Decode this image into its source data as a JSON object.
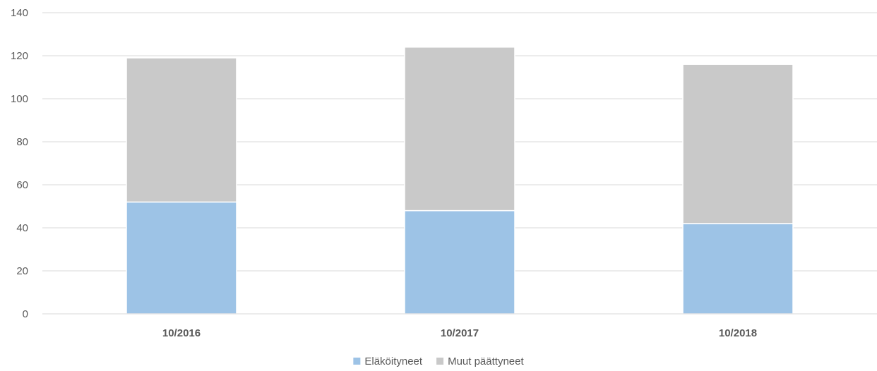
{
  "chart_data": {
    "type": "bar",
    "stacked": true,
    "categories": [
      "10/2016",
      "10/2017",
      "10/2018"
    ],
    "series": [
      {
        "name": "Eläköityneet",
        "values": [
          52,
          48,
          42
        ],
        "color": "#9dc3e6"
      },
      {
        "name": "Muut päättyneet",
        "values": [
          67,
          76,
          74
        ],
        "color": "#c9c9c9"
      }
    ],
    "title": "",
    "xlabel": "",
    "ylabel": "",
    "ylim": [
      0,
      140
    ],
    "yticks": [
      0,
      20,
      40,
      60,
      80,
      100,
      120,
      140
    ],
    "grid": true,
    "legend_position": "bottom"
  }
}
